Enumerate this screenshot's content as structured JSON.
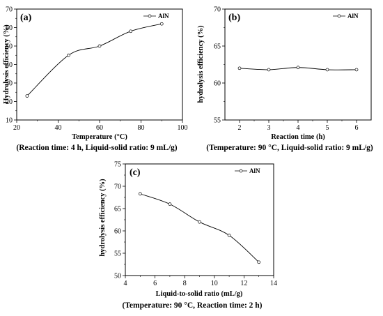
{
  "chart_data": [
    {
      "type": "line",
      "panel_label": "(a)",
      "xlabel": "Temperature (°C)",
      "ylabel": "Hydrolysis efficiency (%)",
      "caption": "(Reaction time: 4 h, Liquid-solid ratio: 9 mL/g)",
      "xlim": [
        20,
        100
      ],
      "ylim": [
        10,
        70
      ],
      "xticks": [
        20,
        40,
        60,
        80,
        100
      ],
      "yticks": [
        10,
        20,
        30,
        40,
        50,
        60,
        70
      ],
      "legend_position": "top-right",
      "series": [
        {
          "name": "AlN",
          "x": [
            25,
            45,
            60,
            75,
            90
          ],
          "y": [
            23,
            45,
            50,
            58,
            62
          ]
        }
      ]
    },
    {
      "type": "line",
      "panel_label": "(b)",
      "xlabel": "Reaction time (h)",
      "ylabel": "hydrolysis efficiency (%)",
      "caption": "(Temperature: 90 °C, Liquid-solid ratio: 9 mL/g)",
      "xlim": [
        1.5,
        6.5
      ],
      "ylim": [
        55,
        70
      ],
      "xticks": [
        2,
        3,
        4,
        5,
        6
      ],
      "yticks": [
        55,
        60,
        65,
        70
      ],
      "legend_position": "top-right",
      "series": [
        {
          "name": "AlN",
          "x": [
            2,
            3,
            4,
            5,
            6
          ],
          "y": [
            62,
            61.8,
            62.1,
            61.8,
            61.8
          ]
        }
      ]
    },
    {
      "type": "line",
      "panel_label": "(c)",
      "xlabel": "Liquid-to-solid ratio (mL/g)",
      "ylabel": "hydrolysis efficiency (%)",
      "caption": "(Temperature: 90 °C, Reaction time: 2 h)",
      "xlim": [
        4,
        14
      ],
      "ylim": [
        50,
        75
      ],
      "xticks": [
        4,
        6,
        8,
        10,
        12,
        14
      ],
      "yticks": [
        50,
        55,
        60,
        65,
        70,
        75
      ],
      "legend_position": "top-right",
      "series": [
        {
          "name": "AlN",
          "x": [
            5,
            7,
            9,
            11,
            13
          ],
          "y": [
            68.3,
            66,
            62,
            59,
            53
          ]
        }
      ]
    }
  ]
}
